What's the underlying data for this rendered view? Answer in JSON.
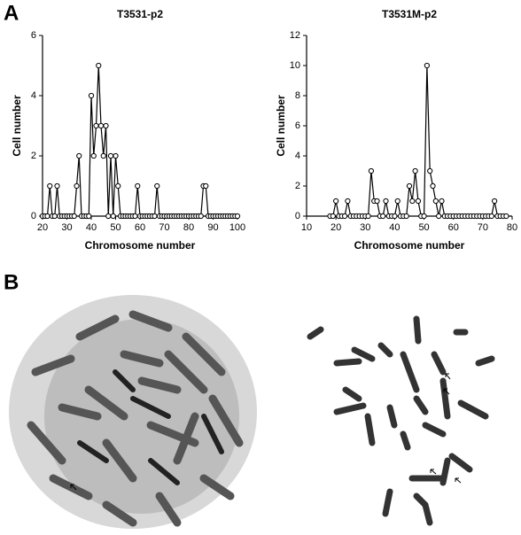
{
  "panel_labels": [
    "A",
    "B"
  ],
  "chart_data": [
    {
      "type": "line",
      "title": "T3531-p2",
      "xlabel": "Chromosome number",
      "ylabel": "Cell number",
      "x": [
        20,
        21,
        22,
        23,
        24,
        25,
        26,
        27,
        28,
        29,
        30,
        31,
        32,
        33,
        34,
        35,
        36,
        37,
        38,
        39,
        40,
        41,
        42,
        43,
        44,
        45,
        46,
        47,
        48,
        49,
        50,
        51,
        52,
        53,
        54,
        55,
        56,
        57,
        58,
        59,
        60,
        61,
        62,
        63,
        64,
        65,
        66,
        67,
        68,
        69,
        70,
        71,
        72,
        73,
        74,
        75,
        76,
        77,
        78,
        79,
        80,
        81,
        82,
        83,
        84,
        85,
        86,
        87,
        88,
        89,
        90,
        91,
        92,
        93,
        94,
        95,
        96,
        97,
        98,
        99,
        100
      ],
      "values": [
        0,
        0,
        0,
        1,
        0,
        0,
        1,
        0,
        0,
        0,
        0,
        0,
        0,
        0,
        1,
        2,
        0,
        0,
        0,
        0,
        4,
        2,
        3,
        5,
        3,
        2,
        3,
        0,
        2,
        0,
        2,
        1,
        0,
        0,
        0,
        0,
        0,
        0,
        0,
        1,
        0,
        0,
        0,
        0,
        0,
        0,
        0,
        1,
        0,
        0,
        0,
        0,
        0,
        0,
        0,
        0,
        0,
        0,
        0,
        0,
        0,
        0,
        0,
        0,
        0,
        0,
        1,
        1,
        0,
        0,
        0,
        0,
        0,
        0,
        0,
        0,
        0,
        0,
        0,
        0,
        0
      ],
      "color": "#000000",
      "xlim": [
        20,
        100
      ],
      "xticks": [
        20,
        30,
        40,
        50,
        60,
        70,
        80,
        90,
        100
      ],
      "ylim": [
        0,
        6
      ],
      "yticks": [
        0,
        2,
        4,
        6
      ]
    },
    {
      "type": "line",
      "title": "T3531M-p2",
      "xlabel": "Chromosome number",
      "ylabel": "Cell number",
      "x": [
        18,
        19,
        20,
        21,
        22,
        23,
        24,
        25,
        26,
        27,
        28,
        29,
        30,
        31,
        32,
        33,
        34,
        35,
        36,
        37,
        38,
        39,
        40,
        41,
        42,
        43,
        44,
        45,
        46,
        47,
        48,
        49,
        50,
        51,
        52,
        53,
        54,
        55,
        56,
        57,
        58,
        59,
        60,
        61,
        62,
        63,
        64,
        65,
        66,
        67,
        68,
        69,
        70,
        71,
        72,
        73,
        74,
        75,
        76,
        77,
        78
      ],
      "values": [
        0,
        0,
        1,
        0,
        0,
        0,
        1,
        0,
        0,
        0,
        0,
        0,
        0,
        0,
        3,
        1,
        1,
        0,
        0,
        1,
        0,
        0,
        0,
        1,
        0,
        0,
        0,
        2,
        1,
        3,
        1,
        0,
        0,
        10,
        3,
        2,
        1,
        0,
        1,
        0,
        0,
        0,
        0,
        0,
        0,
        0,
        0,
        0,
        0,
        0,
        0,
        0,
        0,
        0,
        0,
        0,
        1,
        0,
        0,
        0,
        0
      ],
      "color": "#000000",
      "xlim": [
        10,
        80
      ],
      "xticks": [
        10,
        20,
        30,
        40,
        50,
        60,
        70,
        80
      ],
      "ylim": [
        0,
        12
      ],
      "yticks": [
        0,
        2,
        4,
        6,
        8,
        10,
        12
      ]
    }
  ]
}
